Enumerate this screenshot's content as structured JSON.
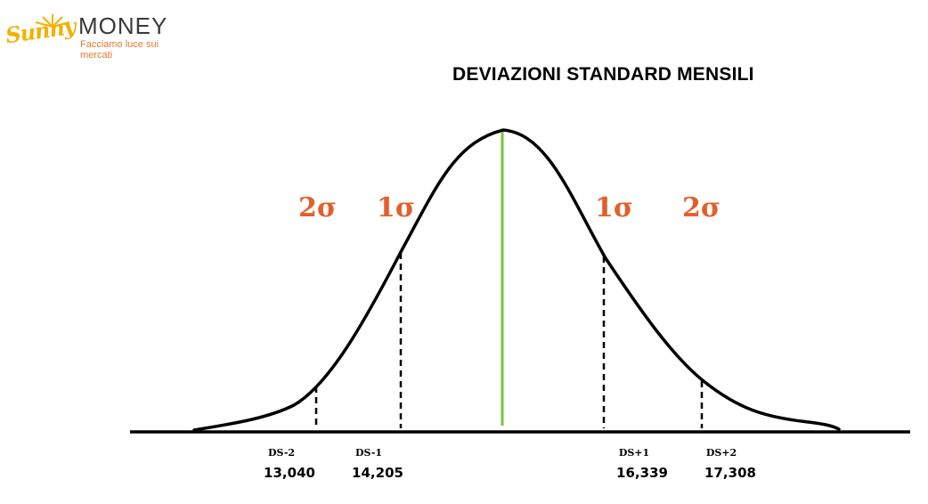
{
  "logo": {
    "word1": "Sunny",
    "word2": "MONEY",
    "tagline": "Facciamo luce sui mercati",
    "colors": {
      "sunny": "#f2b100",
      "money": "#3a3a3a",
      "tagline": "#e07a2f"
    }
  },
  "title": "DEVIAZIONI STANDARD MENSILI",
  "sigma_labels": [
    "2σ",
    "1σ",
    "1σ",
    "2σ"
  ],
  "markers": [
    {
      "label": "DS-2",
      "value": "13,040"
    },
    {
      "label": "DS-1",
      "value": "14,205"
    },
    {
      "label": "DS+1",
      "value": "16,339"
    },
    {
      "label": "DS+2",
      "value": "17,308"
    }
  ],
  "colors": {
    "curve": "#000000",
    "mean_line": "#7cc142",
    "sigma_text": "#e2602c"
  }
}
